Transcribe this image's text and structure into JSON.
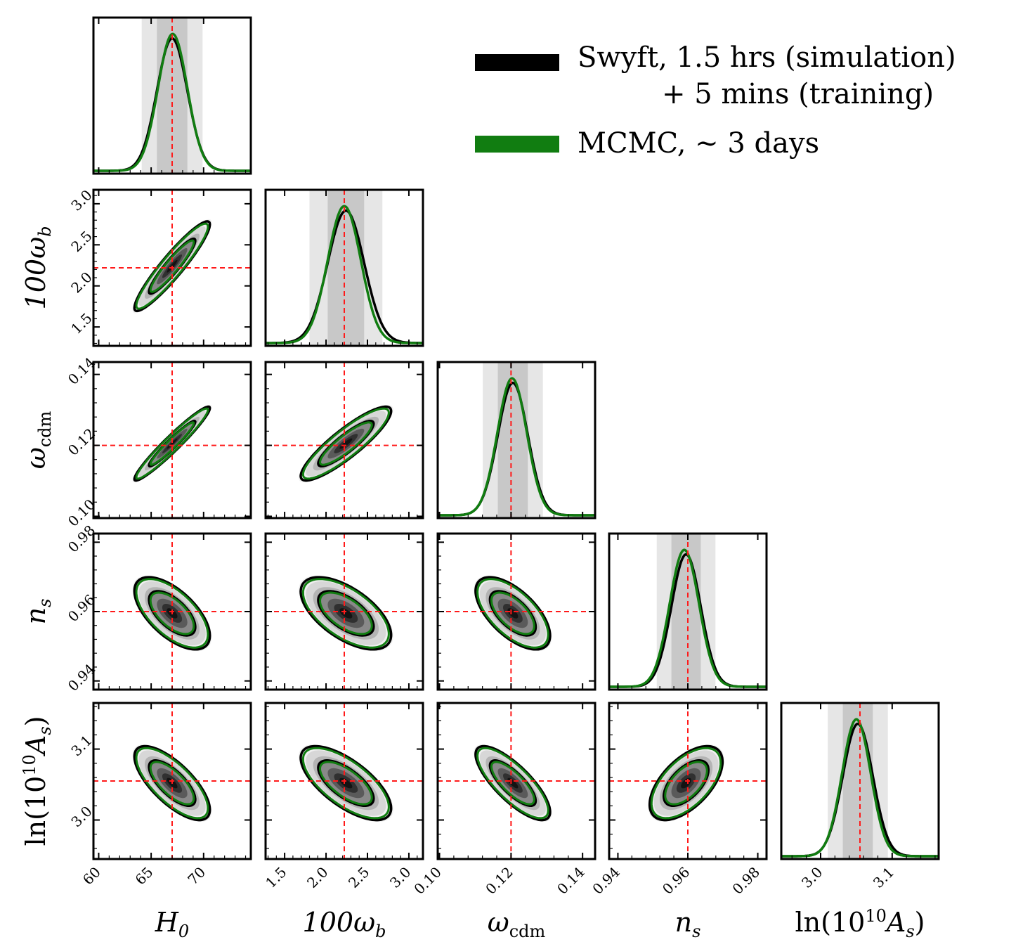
{
  "chart_data": {
    "type": "corner",
    "title": "",
    "parameters": [
      {
        "key": "H0",
        "label_main": "H",
        "label_sub": "0",
        "truth": 67.0,
        "range": [
          59.5,
          74.5
        ],
        "ticks": [
          60,
          65,
          70
        ],
        "tick_labels": [
          "60",
          "65",
          "70"
        ],
        "mean": 67.0,
        "sigma": 1.45,
        "mcmc_mean": 67.05,
        "mcmc_sigma": 1.4
      },
      {
        "key": "100wb",
        "label_main": "100ω",
        "label_sub": "b",
        "truth": 2.22,
        "range": [
          1.27,
          3.17
        ],
        "ticks": [
          1.5,
          2.0,
          2.5,
          3.0
        ],
        "tick_labels": [
          "1.5",
          "2.0",
          "2.5",
          "3.0"
        ],
        "mean": 2.24,
        "sigma": 0.22,
        "mcmc_mean": 2.22,
        "mcmc_sigma": 0.2
      },
      {
        "key": "wcdm",
        "label_main": "ω",
        "label_sub": "cdm",
        "truth": 0.12,
        "range": [
          0.0995,
          0.1435
        ],
        "ticks": [
          0.1,
          0.12,
          0.14
        ],
        "tick_labels": [
          "0.10",
          "0.12",
          "0.14"
        ],
        "mean": 0.1205,
        "sigma": 0.0042,
        "mcmc_mean": 0.1203,
        "mcmc_sigma": 0.0041
      },
      {
        "key": "ns",
        "label_main": "n",
        "label_sub": "s",
        "truth": 0.96,
        "range": [
          0.9375,
          0.9825
        ],
        "ticks": [
          0.94,
          0.96,
          0.98
        ],
        "tick_labels": [
          "0.94",
          "0.96",
          "0.98"
        ],
        "mean": 0.9595,
        "sigma": 0.0042,
        "mcmc_mean": 0.959,
        "mcmc_sigma": 0.0042
      },
      {
        "key": "lnAs",
        "label_main": "ln(10",
        "label_sup": "10",
        "label_tail": "A",
        "label_sub": "s",
        "label_close": ")",
        "truth": 3.055,
        "range": [
          2.945,
          3.165
        ],
        "ticks": [
          3.0,
          3.1
        ],
        "tick_labels": [
          "3.0",
          "3.1"
        ],
        "mean": 3.052,
        "sigma": 0.021,
        "mcmc_mean": 3.05,
        "mcmc_sigma": 0.02
      }
    ],
    "correlations": [
      {
        "i": 1,
        "j": 0,
        "rho": 0.93
      },
      {
        "i": 2,
        "j": 0,
        "rho": 0.96
      },
      {
        "i": 2,
        "j": 1,
        "rho": 0.88
      },
      {
        "i": 3,
        "j": 0,
        "rho": -0.62
      },
      {
        "i": 3,
        "j": 1,
        "rho": -0.6
      },
      {
        "i": 3,
        "j": 2,
        "rho": -0.62
      },
      {
        "i": 4,
        "j": 0,
        "rho": -0.72
      },
      {
        "i": 4,
        "j": 1,
        "rho": -0.68
      },
      {
        "i": 4,
        "j": 2,
        "rho": -0.78
      },
      {
        "i": 4,
        "j": 3,
        "rho": 0.58
      }
    ],
    "series": [
      {
        "name": "Swyft",
        "color": "#000000"
      },
      {
        "name": "MCMC",
        "color": "#117d11"
      }
    ],
    "truth_line_color": "#ff1a1a",
    "band_colors": [
      "#e6e6e6",
      "#c8c8c8"
    ]
  },
  "legend": {
    "swyft_line1": "Swyft, 1.5 hrs (simulation)",
    "swyft_line2": "+ 5 mins (training)",
    "mcmc_label": "MCMC, ∼ 3 days"
  }
}
